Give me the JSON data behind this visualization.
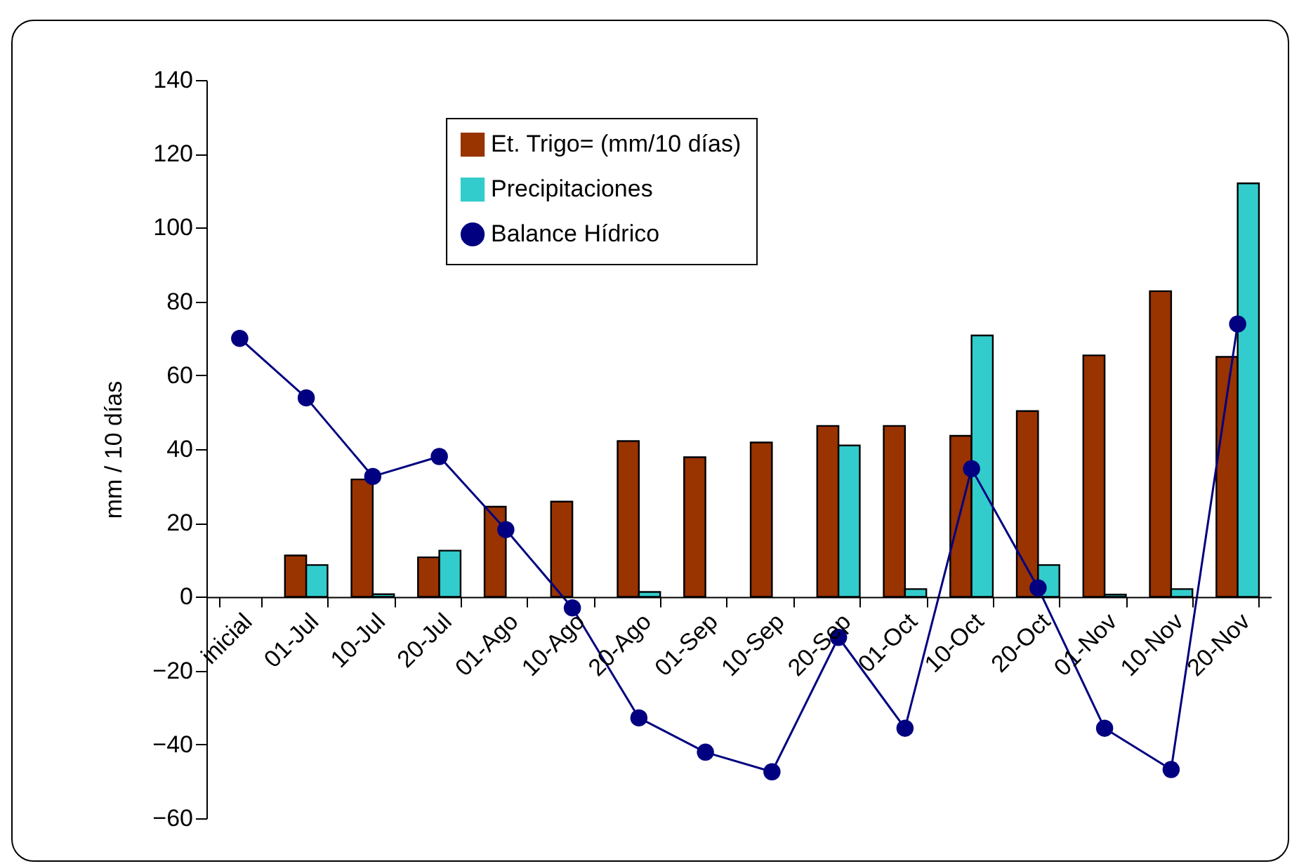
{
  "chart_data": {
    "type": "bar",
    "ylabel": "mm / 10 días",
    "categories": [
      "inicial",
      "01-Jul",
      "10-Jul",
      "20-Jul",
      "01-Ago",
      "10-Ago",
      "20-Ago",
      "01-Sep",
      "10-Sep",
      "20-Sep",
      "01-Oct",
      "10-Oct",
      "20-Oct",
      "01-Nov",
      "10-Nov",
      "20-Nov"
    ],
    "series": [
      {
        "name": "Et. Trigo= (mm/10 días)",
        "color": "#993300",
        "values": [
          null,
          11.2,
          31.8,
          10.7,
          24.4,
          25.8,
          42.2,
          37.8,
          41.8,
          46.3,
          46.3,
          43.6,
          50.3,
          65.4,
          82.8,
          65
        ]
      },
      {
        "name": "Precipitaciones",
        "color": "#33cccc",
        "values": [
          null,
          8.6,
          0.7,
          12.5,
          null,
          null,
          1.3,
          null,
          null,
          41,
          2.1,
          70.8,
          8.6,
          0.6,
          2.1,
          112
        ]
      },
      {
        "name": "Balance Hídrico",
        "type": "line",
        "color": "#000080",
        "marker": "circle",
        "values": [
          70,
          53.9,
          32.6,
          38,
          18.2,
          -3,
          -32.8,
          -42.1,
          -47.4,
          -11,
          -35.6,
          34.7,
          2.4,
          -35.6,
          -46.8,
          73.9
        ]
      }
    ],
    "ylim": [
      -60,
      140
    ],
    "yticks": [
      -60,
      -40,
      -20,
      0,
      20,
      40,
      60,
      80,
      100,
      120,
      140
    ],
    "grid": false,
    "legend": "top"
  }
}
